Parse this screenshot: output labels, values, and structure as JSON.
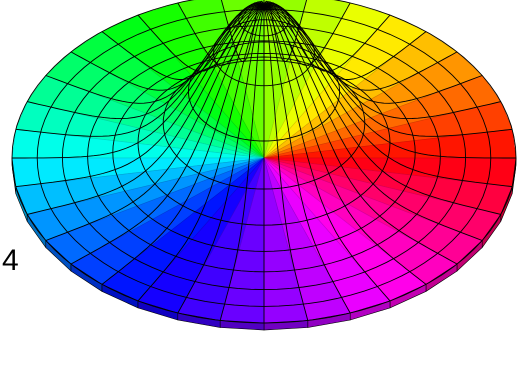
{
  "figure": {
    "edge_label": "4",
    "surface": {
      "type": "radial-wireframe-surface",
      "hue_mode": "angle-as-hue",
      "rings": 10,
      "sectors": 36
    },
    "colors": {
      "background": "#ffffff",
      "wire": "#000000",
      "outline": "#000000"
    }
  }
}
